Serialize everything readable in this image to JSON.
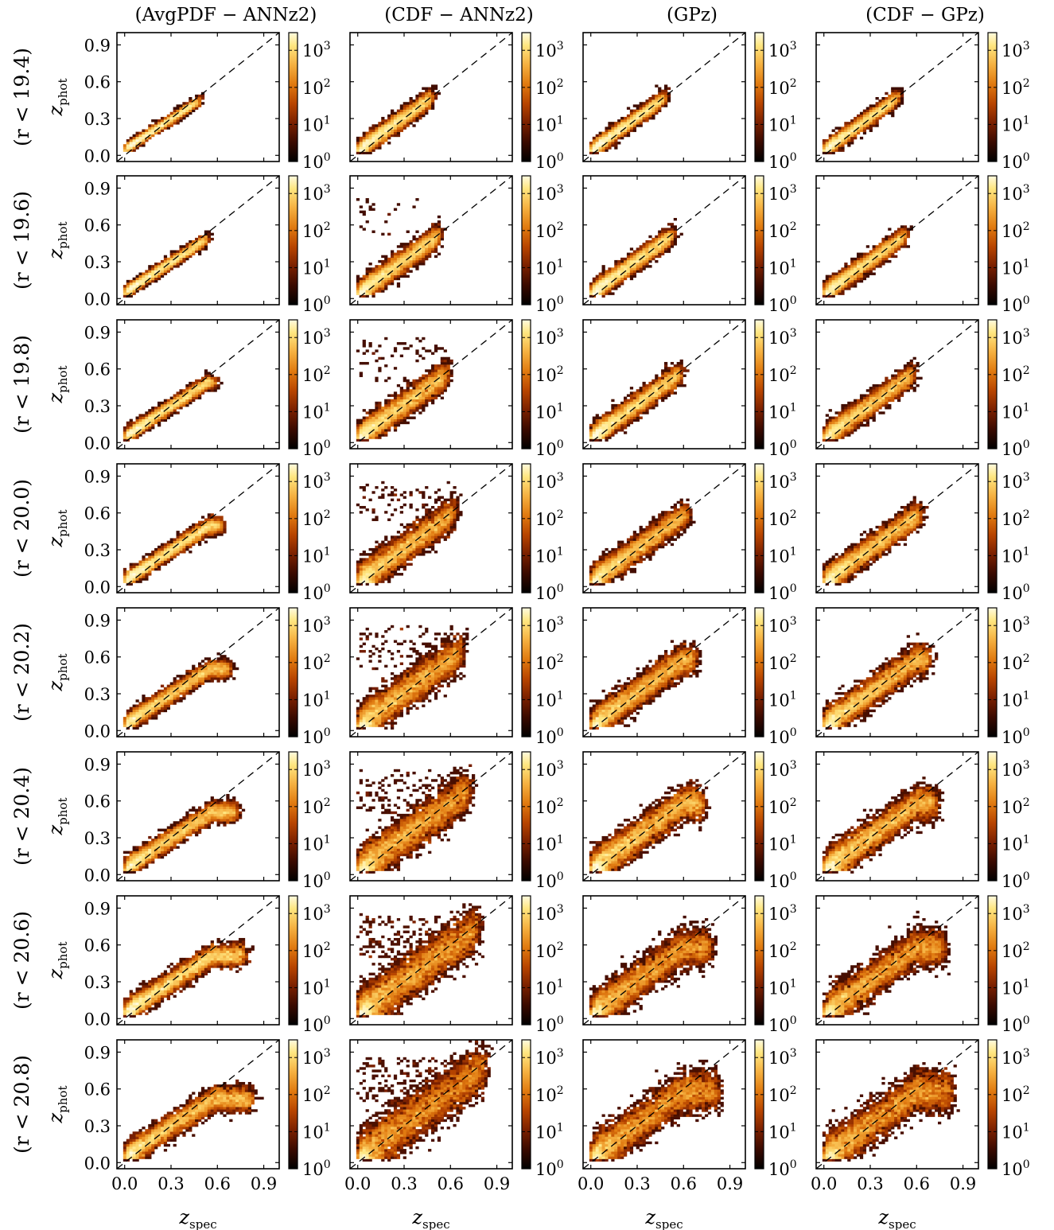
{
  "figure": {
    "columns": [
      {
        "id": "avgpdf-annz2",
        "title": "(AvgPDF − ANNz2)"
      },
      {
        "id": "cdf-annz2",
        "title": "(CDF − ANNz2)"
      },
      {
        "id": "gpz",
        "title": "(GPz)"
      },
      {
        "id": "cdf-gpz",
        "title": "(CDF − GPz)"
      }
    ],
    "rows": [
      {
        "id": "r19-4",
        "cut": "(r < 19.4)",
        "mag": 19.4
      },
      {
        "id": "r19-6",
        "cut": "(r < 19.6)",
        "mag": 19.6
      },
      {
        "id": "r19-8",
        "cut": "(r < 19.8)",
        "mag": 19.8
      },
      {
        "id": "r20-0",
        "cut": "(r < 20.0)",
        "mag": 20.0
      },
      {
        "id": "r20-2",
        "cut": "(r < 20.2)",
        "mag": 20.2
      },
      {
        "id": "r20-4",
        "cut": "(r < 20.4)",
        "mag": 20.4
      },
      {
        "id": "r20-6",
        "cut": "(r < 20.6)",
        "mag": 20.6
      },
      {
        "id": "r20-8",
        "cut": "(r < 20.8)",
        "mag": 20.8
      }
    ]
  },
  "chart_data": {
    "type": "heatmap",
    "xlabel": "z",
    "xlabel_sub": "spec",
    "ylabel": "z",
    "ylabel_sub": "phot",
    "xlim": [
      -0.05,
      1.0
    ],
    "ylim": [
      -0.05,
      1.0
    ],
    "xticks": [
      "0.0",
      "0.3",
      "0.6",
      "0.9"
    ],
    "yticks": [
      "0.0",
      "0.3",
      "0.6",
      "0.9"
    ],
    "tick_values": [
      0.0,
      0.3,
      0.6,
      0.9
    ],
    "diagonal_line": "dashed y = x",
    "colorbar": {
      "scale": "log",
      "range": [
        1,
        3000
      ],
      "ticks": [
        {
          "base": "10",
          "exp": "0",
          "value": 1
        },
        {
          "base": "10",
          "exp": "1",
          "value": 10
        },
        {
          "base": "10",
          "exp": "2",
          "value": 100
        },
        {
          "base": "10",
          "exp": "3",
          "value": 1000
        }
      ],
      "colormap": [
        "#000000",
        "#3a0a00",
        "#7a2000",
        "#b84500",
        "#e07a10",
        "#f5b040",
        "#ffe680",
        "#fffbe0"
      ]
    },
    "panels_description": "Per panel: 2D log-count histogram of z_phot vs z_spec"
  }
}
